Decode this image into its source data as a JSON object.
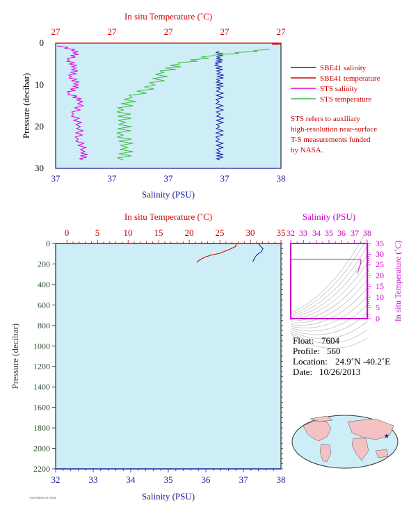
{
  "top_chart": {
    "top_axis_label": "In situ Temperature (˚C)",
    "top_ticks": [
      "27",
      "27",
      "27",
      "27",
      "27"
    ],
    "bottom_axis_label": "Salinity (PSU)",
    "bottom_ticks": [
      "37",
      "37",
      "37",
      "37",
      "38"
    ],
    "left_axis_label": "Pressure (decibar)",
    "left_ticks": [
      "0",
      "10",
      "20",
      "30"
    ],
    "legend": [
      {
        "label": "SBE41 salinity",
        "color": "#1a1aa8"
      },
      {
        "label": "SBE41 temperature",
        "color": "#dd0000"
      },
      {
        "label": "STS salinity",
        "color": "#dd00dd"
      },
      {
        "label": "STS temperature",
        "color": "#44bb44"
      }
    ],
    "note_lines": [
      "STS refers to auxiliary",
      "high-resolution near-surface",
      "T-S measurements funded",
      "by NASA."
    ]
  },
  "main_chart": {
    "top_axis_label": "In situ Temperature (˚C)",
    "top_ticks": [
      "0",
      "5",
      "10",
      "15",
      "20",
      "25",
      "30",
      "35"
    ],
    "bottom_axis_label": "Salinity (PSU)",
    "bottom_ticks": [
      "32",
      "33",
      "34",
      "35",
      "36",
      "37",
      "38"
    ],
    "left_axis_label": "Pressure (decibar)",
    "left_ticks": [
      "0",
      "200",
      "400",
      "600",
      "800",
      "1000",
      "1200",
      "1400",
      "1600",
      "1800",
      "2000",
      "2200"
    ]
  },
  "ts_chart": {
    "top_axis_label": "Salinity (PSU)",
    "top_ticks": [
      "32",
      "33",
      "34",
      "35",
      "36",
      "37",
      "38"
    ],
    "right_axis_label": "In situ Temperature (˚C)",
    "right_ticks": [
      "0",
      "5",
      "10",
      "15",
      "20",
      "25",
      "30",
      "35"
    ]
  },
  "info": {
    "float_label": "Float:",
    "float_value": "7604",
    "profile_label": "Profile:",
    "profile_value": "560",
    "location_label": "Location:",
    "location_value": "24.9˚N  -40.2˚E",
    "date_label": "Date:",
    "date_value": "10/26/2013"
  },
  "colors": {
    "plot_bg": "#cdeef7",
    "temperature": "#dd0000",
    "salinity": "#1a1aa8",
    "sts_salinity": "#dd00dd",
    "sts_temperature": "#44bb44",
    "ts_axis": "#cc00cc"
  },
  "chart_data": [
    {
      "type": "line",
      "title": "",
      "xlabel": "Salinity (PSU)",
      "x2label": "In situ Temperature (˚C)",
      "ylabel": "Pressure (decibar)",
      "ylim": [
        0,
        30
      ],
      "y_inverted": true,
      "series": [
        {
          "name": "SBE41 salinity",
          "axis": "salinity",
          "x_frac": [
            0.725,
            0.73,
            0.72,
            0.732,
            0.728,
            0.73,
            0.726,
            0.73,
            0.728,
            0.726,
            0.73,
            0.728
          ],
          "y": [
            2,
            3.5,
            5,
            7,
            9,
            11,
            14,
            17,
            20,
            23,
            26,
            28
          ]
        },
        {
          "name": "SBE41 temperature",
          "axis": "temperature",
          "x_frac": [
            0.99,
            0.99
          ],
          "y": [
            0,
            0.3
          ]
        },
        {
          "name": "STS salinity",
          "axis": "salinity",
          "x_frac": [
            0.01,
            0.1,
            0.06,
            0.09,
            0.07,
            0.1,
            0.06,
            0.12,
            0.08,
            0.11,
            0.1,
            0.13,
            0.12
          ],
          "y": [
            0.5,
            2,
            4,
            6,
            8,
            10,
            12,
            14,
            17,
            20,
            23,
            26,
            28
          ]
        },
        {
          "name": "STS temperature",
          "axis": "temperature",
          "x_frac": [
            0.95,
            0.7,
            0.55,
            0.48,
            0.44,
            0.34,
            0.3,
            0.31,
            0.3,
            0.32,
            0.3
          ],
          "y": [
            1.5,
            3,
            5,
            7,
            10,
            13,
            16,
            19,
            22,
            25,
            28
          ]
        }
      ]
    },
    {
      "type": "line",
      "title": "",
      "xlabel": "Salinity (PSU)",
      "x2label": "In situ Temperature (˚C)",
      "ylabel": "Pressure (decibar)",
      "xlim": [
        32,
        38
      ],
      "x2lim": [
        0,
        35
      ],
      "ylim": [
        0,
        2200
      ],
      "y_inverted": true,
      "series": [
        {
          "name": "temperature",
          "axis": "temperature",
          "x": [
            27.7,
            27.6,
            26.5,
            25.0,
            23.5,
            22.5,
            21.7,
            21.2
          ],
          "y": [
            0,
            30,
            60,
            95,
            115,
            135,
            160,
            185
          ]
        },
        {
          "name": "salinity",
          "axis": "salinity",
          "x": [
            37.4,
            37.45,
            37.52,
            37.48,
            37.36,
            37.3,
            37.25
          ],
          "y": [
            0,
            25,
            50,
            80,
            110,
            140,
            180
          ]
        }
      ]
    },
    {
      "type": "line",
      "title": "",
      "xlabel": "Salinity (PSU)",
      "ylabel": "In situ Temperature (˚C)",
      "xlim": [
        32,
        38
      ],
      "ylim": [
        0,
        35
      ],
      "series": [
        {
          "name": "T-S",
          "x": [
            32.0,
            37.0,
            37.5,
            37.5,
            37.4,
            37.3,
            37.25
          ],
          "y": [
            27.7,
            27.7,
            27.6,
            26.0,
            24.0,
            22.5,
            21.2
          ]
        }
      ]
    }
  ]
}
